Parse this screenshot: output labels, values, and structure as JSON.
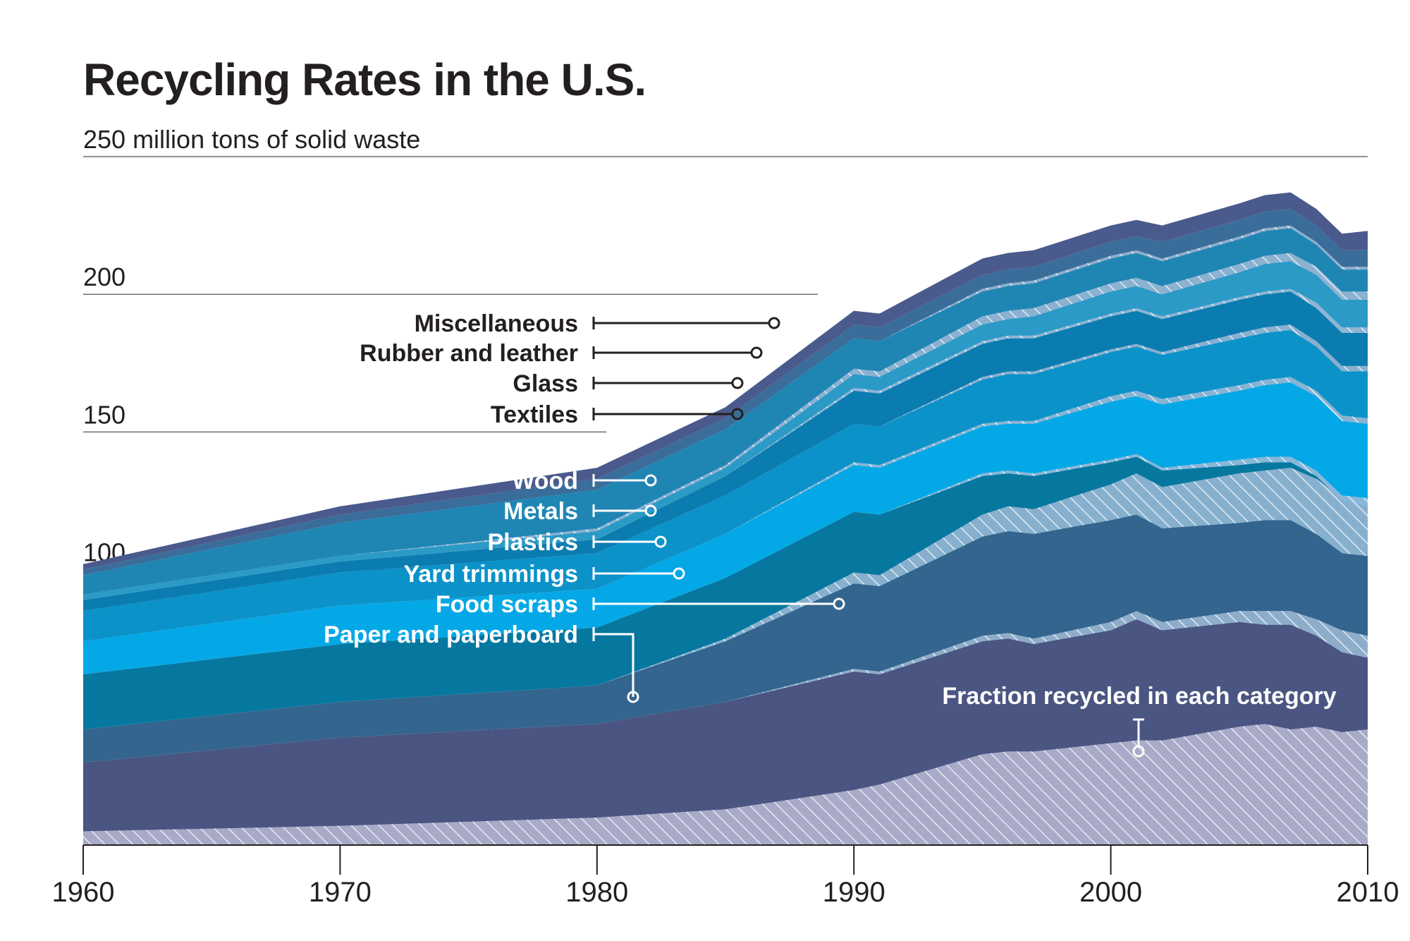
{
  "chart_data": {
    "type": "area",
    "title": "Recycling Rates in the U.S.",
    "ylabel_top": "250 million tons of solid waste",
    "y_ticks": [
      {
        "value": 250,
        "label": "250 million tons of solid waste"
      },
      {
        "value": 200,
        "label": "200"
      },
      {
        "value": 150,
        "label": "150"
      },
      {
        "value": 100,
        "label": "100"
      }
    ],
    "x_ticks": [
      "1960",
      "1970",
      "1980",
      "1990",
      "2000",
      "2010"
    ],
    "xlim": [
      1960,
      2010
    ],
    "ylim": [
      0,
      250
    ],
    "x": [
      1960,
      1970,
      1980,
      1985,
      1990,
      1991,
      1995,
      1996,
      1997,
      2000,
      2001,
      2002,
      2005,
      2006,
      2007,
      2008,
      2009,
      2010
    ],
    "series": [
      {
        "name": "Paper and paperboard",
        "color": "#4a5582",
        "values": [
          30,
          39,
          44,
          52,
          63,
          62,
          74,
          75,
          73,
          78,
          82,
          78,
          81,
          80,
          80,
          76,
          70,
          68
        ],
        "recycled": [
          5,
          7,
          10,
          13,
          20,
          22,
          33,
          34,
          34,
          37,
          38,
          38,
          43,
          44,
          42,
          43,
          41,
          42
        ]
      },
      {
        "name": "Food scraps",
        "color": "#33658e",
        "values": [
          12,
          13,
          14,
          22,
          32,
          32,
          38,
          39,
          40,
          40,
          38,
          37,
          36,
          38,
          38,
          37,
          36,
          37
        ],
        "recycled": [
          0,
          0,
          0,
          0,
          1,
          1,
          2,
          2,
          2,
          3,
          3,
          3,
          4,
          5,
          5,
          6,
          8,
          8
        ]
      },
      {
        "name": "Yard trimmings",
        "color": "#06789f",
        "values": [
          20,
          21,
          21,
          23,
          26,
          26,
          22,
          21,
          21,
          21,
          21,
          21,
          21,
          21,
          21,
          21,
          19,
          18
        ],
        "recycled": [
          0,
          0,
          0,
          1,
          4,
          4,
          8,
          9,
          9,
          13,
          15,
          15,
          18,
          18,
          19,
          20,
          20,
          20
        ]
      },
      {
        "name": "Plastics",
        "color": "#05a8e6",
        "values": [
          12,
          14,
          14,
          16,
          17,
          17,
          18,
          18,
          19,
          22,
          22,
          24,
          27,
          28,
          29,
          29,
          29,
          30
        ],
        "recycled": [
          0,
          0,
          0,
          0,
          0,
          0,
          1,
          1,
          1,
          1,
          1,
          1,
          2,
          2,
          2,
          2,
          2,
          3
        ]
      },
      {
        "name": "Metals",
        "color": "#0b92c9",
        "values": [
          11,
          12,
          13,
          14,
          15,
          15,
          17,
          18,
          18,
          18,
          18,
          18,
          19,
          19,
          19,
          18,
          18,
          19
        ],
        "recycled": [
          0,
          0,
          0,
          0,
          1,
          1,
          1,
          1,
          1,
          2,
          2,
          2,
          2,
          2,
          2,
          2,
          2,
          2
        ]
      },
      {
        "name": "Wood",
        "color": "#0b7cb0",
        "values": [
          4,
          4,
          5,
          7,
          12,
          12,
          13,
          13,
          13,
          13,
          13,
          13,
          14,
          14,
          14,
          14,
          14,
          14
        ],
        "recycled": [
          0,
          0,
          0,
          0,
          0,
          0,
          1,
          1,
          1,
          1,
          1,
          1,
          2,
          2,
          2,
          2,
          2,
          2
        ]
      },
      {
        "name": "Textiles",
        "color": "#2b9ac7",
        "values": [
          2,
          2,
          3,
          3,
          6,
          6,
          7,
          7,
          8,
          9,
          9,
          9,
          10,
          11,
          11,
          12,
          12,
          12
        ],
        "recycled": [
          0,
          0,
          0,
          0,
          1,
          1,
          1,
          1,
          1,
          1,
          1,
          1,
          1,
          1,
          1,
          2,
          2,
          2
        ]
      },
      {
        "name": "Glass",
        "color": "#1f86b4",
        "values": [
          7,
          12,
          15,
          14,
          13,
          13,
          12,
          12,
          12,
          12,
          12,
          12,
          12,
          12,
          12,
          11,
          11,
          11
        ],
        "recycled": [
          0,
          0,
          1,
          1,
          2,
          2,
          3,
          3,
          3,
          3,
          3,
          3,
          3,
          3,
          3,
          3,
          3,
          3
        ]
      },
      {
        "name": "Rubber and leather",
        "color": "#3a6d9a",
        "values": [
          2,
          3,
          4,
          4,
          5,
          5,
          6,
          6,
          6,
          6,
          6,
          7,
          7,
          7,
          7,
          7,
          7,
          7
        ],
        "recycled": [
          0,
          0,
          0,
          0,
          0,
          0,
          1,
          1,
          1,
          1,
          1,
          1,
          1,
          1,
          1,
          1,
          1,
          1
        ]
      },
      {
        "name": "Miscellaneous",
        "color": "#4b5a8c",
        "values": [
          2,
          3,
          4,
          4,
          5,
          5,
          6,
          6,
          6,
          6,
          6,
          6,
          6,
          6,
          6,
          6,
          6,
          7
        ],
        "recycled": [
          0,
          0,
          0,
          0,
          0,
          0,
          0,
          0,
          0,
          0,
          0,
          0,
          0,
          0,
          0,
          0,
          0,
          0
        ]
      }
    ],
    "annotation": "Fraction recycled in each category",
    "grid": true,
    "legend": "inline-labels"
  }
}
